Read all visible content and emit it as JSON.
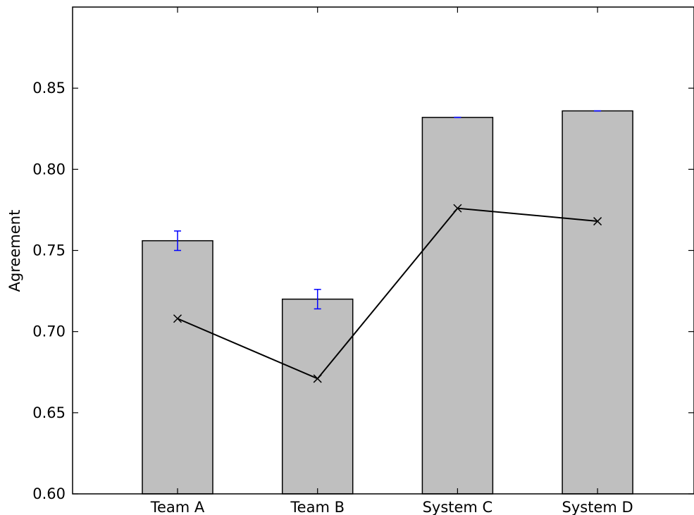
{
  "chart_data": {
    "type": "bar",
    "title": "",
    "xlabel": "",
    "ylabel": "Agreement",
    "ylim": [
      0.6,
      0.9
    ],
    "yticks": [
      "0.60",
      "0.65",
      "0.70",
      "0.75",
      "0.80",
      "0.85"
    ],
    "grid": false,
    "legend": "none",
    "categories": [
      "Team A",
      "Team B",
      "System C",
      "System D"
    ],
    "series": [
      {
        "type": "bar",
        "values": [
          0.756,
          0.72,
          0.832,
          0.836
        ],
        "error": [
          0.006,
          0.006,
          0.0,
          0.0
        ],
        "color": "#bfbfbf",
        "edge_color": "#000000",
        "error_color": "#0000ff"
      },
      {
        "type": "line",
        "values": [
          0.708,
          0.671,
          0.776,
          0.768
        ],
        "color": "#000000",
        "marker": "x"
      }
    ]
  }
}
